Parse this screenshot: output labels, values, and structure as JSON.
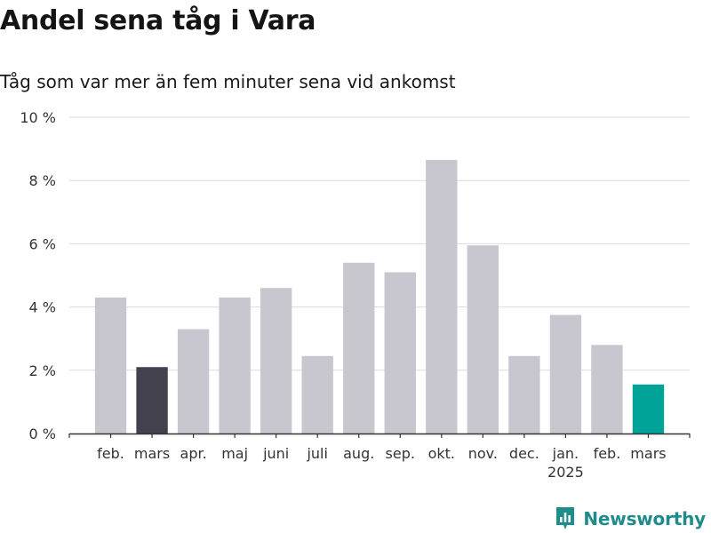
{
  "title": "Andel sena tåg i Vara",
  "subtitle": "Tåg som var mer än fem minuter sena vid ankomst",
  "brand": {
    "name": "Newsworthy",
    "color": "#1e8c8a",
    "icon": "bar-chart-logo-icon"
  },
  "chart_data": {
    "type": "bar",
    "categories": [
      "feb.",
      "mars",
      "apr.",
      "maj",
      "juni",
      "juli",
      "aug.",
      "sep.",
      "okt.",
      "nov.",
      "dec.",
      "jan.",
      "feb.",
      "mars"
    ],
    "category_sublabels": [
      "",
      "",
      "",
      "",
      "",
      "",
      "",
      "",
      "",
      "",
      "",
      "2025",
      "",
      ""
    ],
    "values": [
      4.3,
      2.1,
      3.3,
      4.3,
      4.6,
      2.45,
      5.4,
      5.1,
      8.65,
      5.95,
      2.45,
      3.75,
      2.8,
      1.55
    ],
    "unit": "%",
    "ylim": [
      0,
      10
    ],
    "yticks": [
      0,
      2,
      4,
      6,
      8,
      10
    ],
    "ytick_labels": [
      "0 %",
      "2 %",
      "4 %",
      "6 %",
      "8 %",
      "10 %"
    ],
    "grid": true,
    "colors": {
      "default": "#c8c7d0",
      "highlight_previous_year": "#42414d",
      "highlight_current": "#00a398",
      "grid": "#dcdcdc",
      "axis": "#333333"
    },
    "highlight": {
      "1": "highlight_previous_year",
      "13": "highlight_current"
    }
  }
}
